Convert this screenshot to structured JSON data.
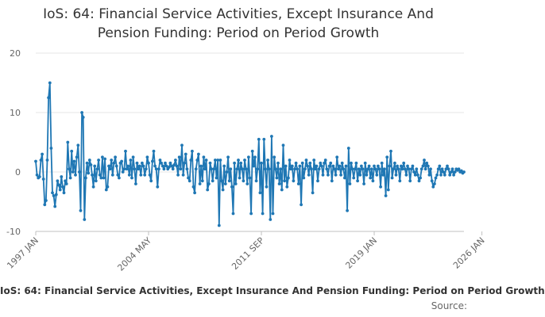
{
  "chart_data": {
    "type": "line",
    "title_lines": [
      "IoS: 64: Financial Service Activities, Except Insurance And",
      "Pension Funding: Period on Period Growth"
    ],
    "ylim": [
      -10,
      20
    ],
    "yticks": [
      -10,
      0,
      10,
      20
    ],
    "xticks": [
      {
        "label": "1997 JAN",
        "t": 0
      },
      {
        "label": "2004 MAY",
        "t": 88
      },
      {
        "label": "2011 SEP",
        "t": 176
      },
      {
        "label": "2019 JAN",
        "t": 264
      },
      {
        "label": "2026 JAN",
        "t": 348
      }
    ],
    "grid": true,
    "series": [
      {
        "name": "IoS: 64: Financial Service Activities, Except Insurance And Pension Funding: Period on Period Growth",
        "color": "#1f77b4",
        "values": [
          1.8,
          -0.5,
          -1.0,
          -0.8,
          2.0,
          3.0,
          -1.2,
          -5.5,
          -4.8,
          2.0,
          12.5,
          15.0,
          4.0,
          -3.5,
          -4.0,
          -5.8,
          -3.8,
          -1.5,
          -2.2,
          -3.0,
          -0.8,
          -2.5,
          -3.5,
          -1.5,
          -2.0,
          5.0,
          0.5,
          -1.0,
          3.5,
          0.0,
          1.8,
          -0.5,
          2.5,
          4.5,
          0.0,
          -6.5,
          10.0,
          9.2,
          -8.0,
          -1.0,
          1.5,
          -0.2,
          2.0,
          1.2,
          -0.5,
          -2.5,
          1.0,
          -1.5,
          0.5,
          2.0,
          -0.5,
          -1.0,
          2.5,
          -1.0,
          2.2,
          -3.0,
          -2.5,
          1.0,
          0.5,
          2.0,
          -0.5,
          1.5,
          2.5,
          1.0,
          -0.5,
          -1.0,
          1.5,
          1.8,
          0.0,
          0.5,
          3.5,
          0.5,
          1.0,
          -0.5,
          2.0,
          -1.0,
          2.5,
          0.5,
          -2.0,
          1.5,
          0.5,
          1.0,
          -0.5,
          1.5,
          1.0,
          -0.5,
          0.5,
          2.5,
          1.5,
          -0.5,
          -1.5,
          1.8,
          3.5,
          1.0,
          0.5,
          -2.5,
          0.5,
          2.0,
          1.5,
          1.0,
          0.5,
          1.5,
          1.0,
          0.5,
          0.8,
          1.5,
          1.0,
          0.5,
          1.2,
          2.0,
          1.0,
          -0.5,
          2.5,
          0.5,
          4.5,
          -0.5,
          1.5,
          3.0,
          0.5,
          -1.0,
          -1.5,
          2.0,
          3.5,
          -2.5,
          -3.5,
          0.5,
          2.0,
          3.0,
          -2.0,
          1.0,
          -1.5,
          2.5,
          0.5,
          2.0,
          -3.0,
          -2.0,
          1.5,
          0.5,
          -1.5,
          0.5,
          2.0,
          -1.0,
          2.0,
          -9.0,
          2.0,
          -1.5,
          -3.0,
          1.0,
          -2.0,
          0.0,
          2.5,
          -1.5,
          0.5,
          -2.5,
          -7.0,
          1.5,
          -2.0,
          0.5,
          2.0,
          -1.0,
          1.5,
          0.5,
          -1.5,
          2.0,
          0.5,
          -2.0,
          2.5,
          -1.0,
          -7.0,
          3.5,
          1.0,
          2.5,
          -1.5,
          0.5,
          5.5,
          -3.5,
          1.5,
          -7.0,
          5.5,
          0.5,
          -2.5,
          2.0,
          0.5,
          -8.0,
          6.0,
          -7.0,
          2.5,
          0.5,
          -1.0,
          1.5,
          -2.0,
          0.5,
          -3.0,
          4.5,
          -1.5,
          1.0,
          -2.5,
          -1.0,
          2.0,
          0.5,
          1.0,
          -1.5,
          0.5,
          1.5,
          0.5,
          -2.0,
          1.0,
          -5.5,
          1.5,
          -1.0,
          0.5,
          2.0,
          1.0,
          -0.5,
          1.5,
          0.5,
          -3.5,
          2.0,
          0.5,
          1.0,
          -1.5,
          0.5,
          1.5,
          1.0,
          -0.5,
          1.5,
          2.0,
          0.5,
          -0.5,
          1.0,
          1.5,
          -1.5,
          1.0,
          0.5,
          -0.5,
          2.5,
          0.5,
          1.0,
          -0.5,
          1.5,
          0.5,
          -1.0,
          1.0,
          -6.5,
          4.0,
          -2.0,
          1.5,
          0.5,
          -1.0,
          0.5,
          1.5,
          -1.5,
          0.5,
          -0.5,
          1.0,
          0.5,
          -2.0,
          1.5,
          -0.5,
          0.5,
          1.0,
          -1.0,
          0.5,
          -1.5,
          1.0,
          0.5,
          -0.5,
          1.0,
          0.5,
          -2.5,
          1.5,
          -0.5,
          0.5,
          -4.0,
          2.5,
          -3.0,
          1.0,
          3.5,
          -1.0,
          0.5,
          1.5,
          -0.5,
          1.0,
          0.5,
          -1.5,
          1.0,
          0.5,
          1.5,
          0.5,
          -0.5,
          1.0,
          0.5,
          -1.5,
          0.5,
          1.0,
          0.0,
          -0.5,
          0.5,
          -0.5,
          -1.5,
          -1.0,
          0.5,
          1.0,
          2.0,
          0.5,
          1.5,
          1.0,
          -0.5,
          0.5,
          -1.5,
          -2.5,
          -2.0,
          -1.0,
          -0.5,
          0.5,
          1.0,
          -0.5,
          0.5,
          0.0,
          -0.5,
          0.5,
          1.0,
          0.5,
          -0.5,
          0.0,
          0.5,
          -0.5,
          0.0,
          0.5,
          0.3,
          0.5,
          0.0,
          0.2,
          -0.2,
          0.0
        ]
      }
    ],
    "legend_text": "IoS: 64: Financial Service Activities, Except Insurance And Pension Funding: Period on Period Growth",
    "source_label": "Source:"
  }
}
